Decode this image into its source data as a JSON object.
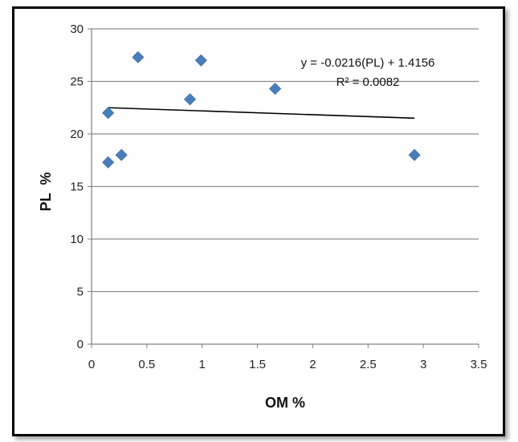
{
  "chart_data": {
    "type": "scatter",
    "title": "",
    "xlabel": "OM %",
    "ylabel": "PL  %",
    "xlim": [
      0,
      3.5
    ],
    "ylim": [
      0,
      30
    ],
    "x_ticks": [
      0,
      0.5,
      1,
      1.5,
      2,
      2.5,
      3,
      3.5
    ],
    "x_tick_labels": [
      "0",
      "0.5",
      "1",
      "1.5",
      "2",
      "2.5",
      "3",
      "3.5"
    ],
    "y_ticks": [
      0,
      5,
      10,
      15,
      20,
      25,
      30
    ],
    "y_tick_labels": [
      "0",
      "5",
      "10",
      "15",
      "20",
      "25",
      "30"
    ],
    "grid": {
      "horizontal": true,
      "vertical": false
    },
    "legend": "none",
    "series": [
      {
        "marker": "diamond",
        "color": "#4a7ebb",
        "points": [
          {
            "x": 0.15,
            "y": 22.0
          },
          {
            "x": 0.15,
            "y": 17.3
          },
          {
            "x": 0.27,
            "y": 18.0
          },
          {
            "x": 0.42,
            "y": 27.3
          },
          {
            "x": 0.89,
            "y": 23.3
          },
          {
            "x": 0.99,
            "y": 27.0
          },
          {
            "x": 1.66,
            "y": 24.3
          },
          {
            "x": 2.92,
            "y": 18.0
          }
        ]
      }
    ],
    "trendline": {
      "x_range": [
        0.15,
        2.92
      ],
      "y_range": [
        22.5,
        21.5
      ],
      "color": "#000000",
      "equation": "y = -0.0216(PL) + 1.4156",
      "r_squared": "R² = 0.0082"
    }
  }
}
